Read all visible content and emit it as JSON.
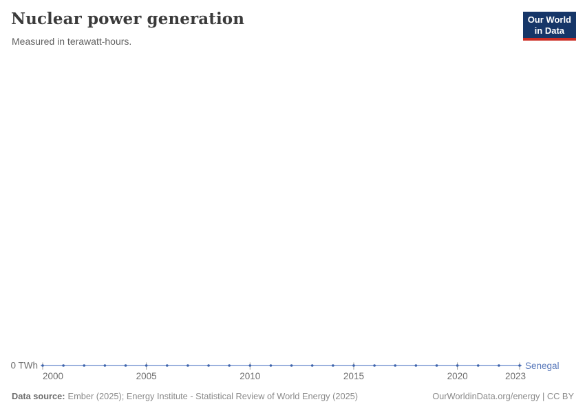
{
  "header": {
    "title": "Nuclear power generation",
    "subtitle": "Measured in terawatt-hours.",
    "logo": {
      "line1": "Our World",
      "line2": "in Data",
      "bg_color": "#163668",
      "accent_color": "#cb2d24",
      "text_color": "#ffffff"
    }
  },
  "chart_data": {
    "type": "line",
    "title": "Nuclear power generation",
    "subtitle": "Measured in terawatt-hours.",
    "unit": "TWh",
    "series": [
      {
        "name": "Senegal",
        "x": [
          2000,
          2001,
          2002,
          2003,
          2004,
          2005,
          2006,
          2007,
          2008,
          2009,
          2010,
          2011,
          2012,
          2013,
          2014,
          2015,
          2016,
          2017,
          2018,
          2019,
          2020,
          2021,
          2022,
          2023
        ],
        "values": [
          0,
          0,
          0,
          0,
          0,
          0,
          0,
          0,
          0,
          0,
          0,
          0,
          0,
          0,
          0,
          0,
          0,
          0,
          0,
          0,
          0,
          0,
          0,
          0
        ]
      }
    ],
    "x_ticks": [
      2000,
      2005,
      2010,
      2015,
      2020,
      2023
    ],
    "xlim": [
      2000,
      2023
    ],
    "ylim": [
      0,
      0
    ],
    "y_axis_label": "0 TWh",
    "grid": false,
    "markers": true,
    "legend_position": "end-of-line",
    "colors": {
      "line": "#7b99d4",
      "marker": "#3d63ab",
      "entity_label": "#5878ba",
      "axis_text": "#6e6e6e",
      "tick": "#9e9e9e"
    }
  },
  "footer": {
    "source_label": "Data source:",
    "source_text": "Ember (2025); Energy Institute - Statistical Review of World Energy (2025)",
    "license_text": "OurWorldinData.org/energy | CC BY"
  }
}
